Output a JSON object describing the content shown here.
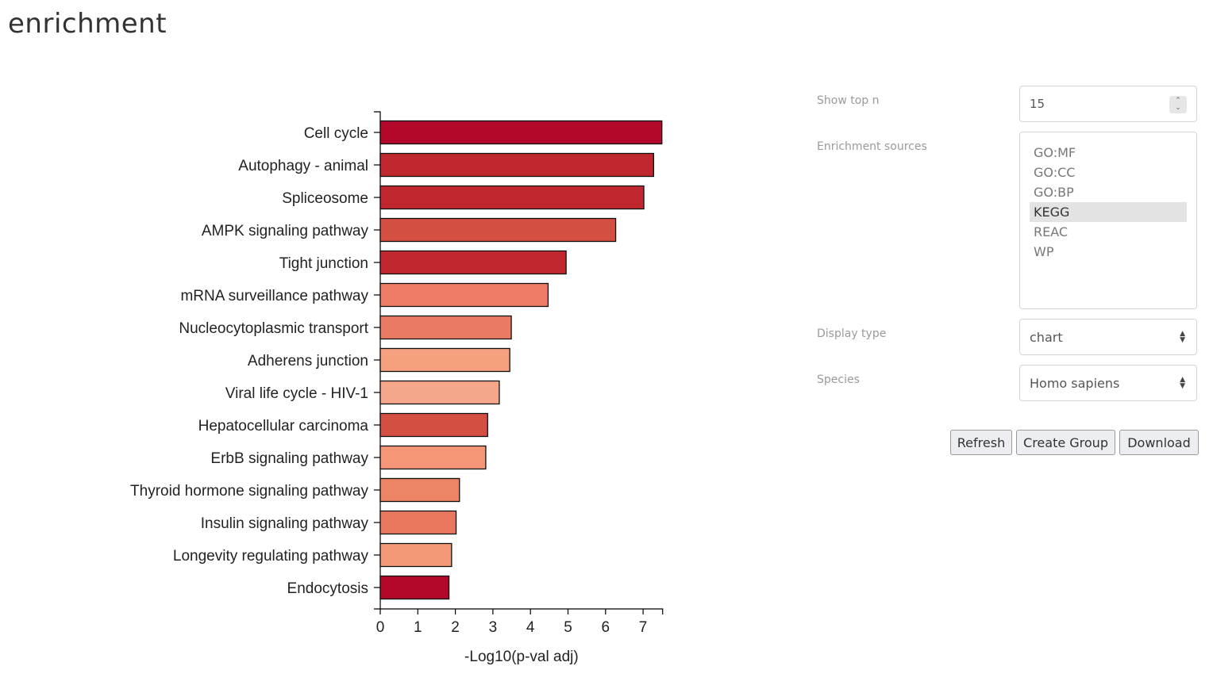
{
  "page": {
    "title": "enrichment"
  },
  "controls": {
    "top_n": {
      "label": "Show top n",
      "value": "15"
    },
    "sources": {
      "label": "Enrichment sources",
      "options": [
        "GO:MF",
        "GO:CC",
        "GO:BP",
        "KEGG",
        "REAC",
        "WP"
      ],
      "selected": "KEGG"
    },
    "display_type": {
      "label": "Display type",
      "value": "chart"
    },
    "species": {
      "label": "Species",
      "value": "Homo sapiens"
    }
  },
  "buttons": {
    "refresh": "Refresh",
    "create_group": "Create Group",
    "download": "Download"
  },
  "chart_data": {
    "type": "bar",
    "orientation": "horizontal",
    "xlabel": "-Log10(p-val adj)",
    "xlim": [
      0,
      7.5
    ],
    "xticks": [
      "0",
      "1",
      "2",
      "3",
      "4",
      "5",
      "6",
      "7"
    ],
    "categories": [
      "Cell cycle",
      "Autophagy - animal",
      "Spliceosome",
      "AMPK signaling pathway",
      "Tight junction",
      "mRNA surveillance pathway",
      "Nucleocytoplasmic transport",
      "Adherens junction",
      "Viral life cycle - HIV-1",
      "Hepatocellular carcinoma",
      "ErbB signaling pathway",
      "Thyroid hormone signaling pathway",
      "Insulin signaling pathway",
      "Longevity regulating pathway",
      "Endocytosis"
    ],
    "values": [
      7.5,
      7.28,
      7.02,
      6.27,
      4.95,
      4.47,
      3.49,
      3.45,
      3.17,
      2.86,
      2.81,
      2.11,
      2.02,
      1.9,
      1.83
    ],
    "colors": [
      "#b2092a",
      "#c1272f",
      "#c1272f",
      "#d54e42",
      "#c1272f",
      "#ed7b65",
      "#eb7a64",
      "#f5a17f",
      "#f5a78c",
      "#d54e42",
      "#f49678",
      "#ec8466",
      "#ea7861",
      "#f49978",
      "#b2092a"
    ]
  }
}
